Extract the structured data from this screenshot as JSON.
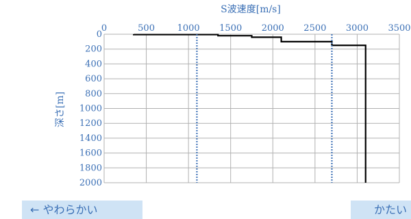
{
  "chart_data": {
    "type": "line",
    "title": "",
    "xlabel": "S波速度[m/s]",
    "ylabel": "深さ[m]",
    "xlim": [
      0,
      3500
    ],
    "ylim": [
      0,
      2000
    ],
    "y_inverted": true,
    "x_axis_position": "top",
    "x_ticks": [
      "0",
      "500",
      "1000",
      "1500",
      "2000",
      "2500",
      "3000",
      "3500"
    ],
    "y_ticks": [
      "0",
      "200",
      "400",
      "600",
      "800",
      "1000",
      "1200",
      "1400",
      "1600",
      "1800",
      "2000"
    ],
    "grid": true,
    "series": [
      {
        "style": "solid-step",
        "color": "#000000",
        "points": [
          [
            350,
            0
          ],
          [
            350,
            5
          ],
          [
            1350,
            5
          ],
          [
            1350,
            20
          ],
          [
            1750,
            20
          ],
          [
            1750,
            40
          ],
          [
            2100,
            40
          ],
          [
            2100,
            100
          ],
          [
            2700,
            100
          ],
          [
            2700,
            150
          ],
          [
            3100,
            150
          ],
          [
            3100,
            2000
          ]
        ]
      },
      {
        "style": "dotted-vertical",
        "color": "#3a6fb5",
        "x": 1100,
        "y": [
          0,
          2000
        ]
      },
      {
        "style": "dotted-vertical",
        "color": "#3a6fb5",
        "x": 2700,
        "y": [
          0,
          2000
        ]
      }
    ]
  },
  "nav": {
    "soft_label": "← やわらかい",
    "hard_label": "かたい"
  },
  "colors": {
    "axis_text": "#3a6fb5",
    "grid": "#b0b0b0",
    "button_bg": "#cfe3f5"
  }
}
